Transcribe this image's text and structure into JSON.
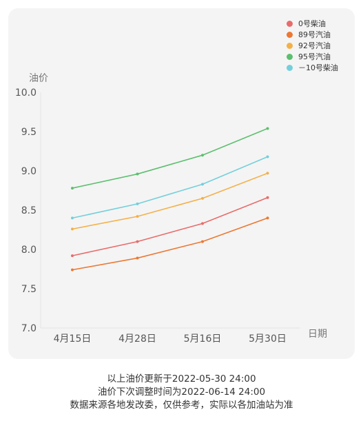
{
  "chart_data": {
    "type": "line",
    "ylabel": "油价",
    "xlabel": "日期",
    "categories": [
      "4月15日",
      "4月28日",
      "5月16日",
      "5月30日"
    ],
    "ylim": [
      7.0,
      10.0
    ],
    "yticks": [
      "7.0",
      "7.5",
      "8.0",
      "8.5",
      "9.0",
      "9.5",
      "10.0"
    ],
    "grid": false,
    "legend_position": "top-right",
    "series": [
      {
        "name": "0号柴油",
        "color": "#e96b6b",
        "values": [
          7.92,
          8.1,
          8.33,
          8.66
        ]
      },
      {
        "name": "89号汽油",
        "color": "#ec7833",
        "values": [
          7.74,
          7.89,
          8.1,
          8.4
        ]
      },
      {
        "name": "92号汽油",
        "color": "#f4b048",
        "values": [
          8.26,
          8.42,
          8.65,
          8.97
        ]
      },
      {
        "name": "95号汽油",
        "color": "#5cbf6f",
        "values": [
          8.78,
          8.96,
          9.2,
          9.54
        ]
      },
      {
        "name": "－10号柴油",
        "color": "#73cfdc",
        "values": [
          8.4,
          8.58,
          8.83,
          9.18
        ]
      }
    ]
  },
  "footer": {
    "line1": "以上油价更新于2022-05-30 24:00",
    "line2": "油价下次调整时间为2022-06-14 24:00",
    "line3": "数据来源各地发改委，仅供参考，实际以各加油站为准"
  }
}
